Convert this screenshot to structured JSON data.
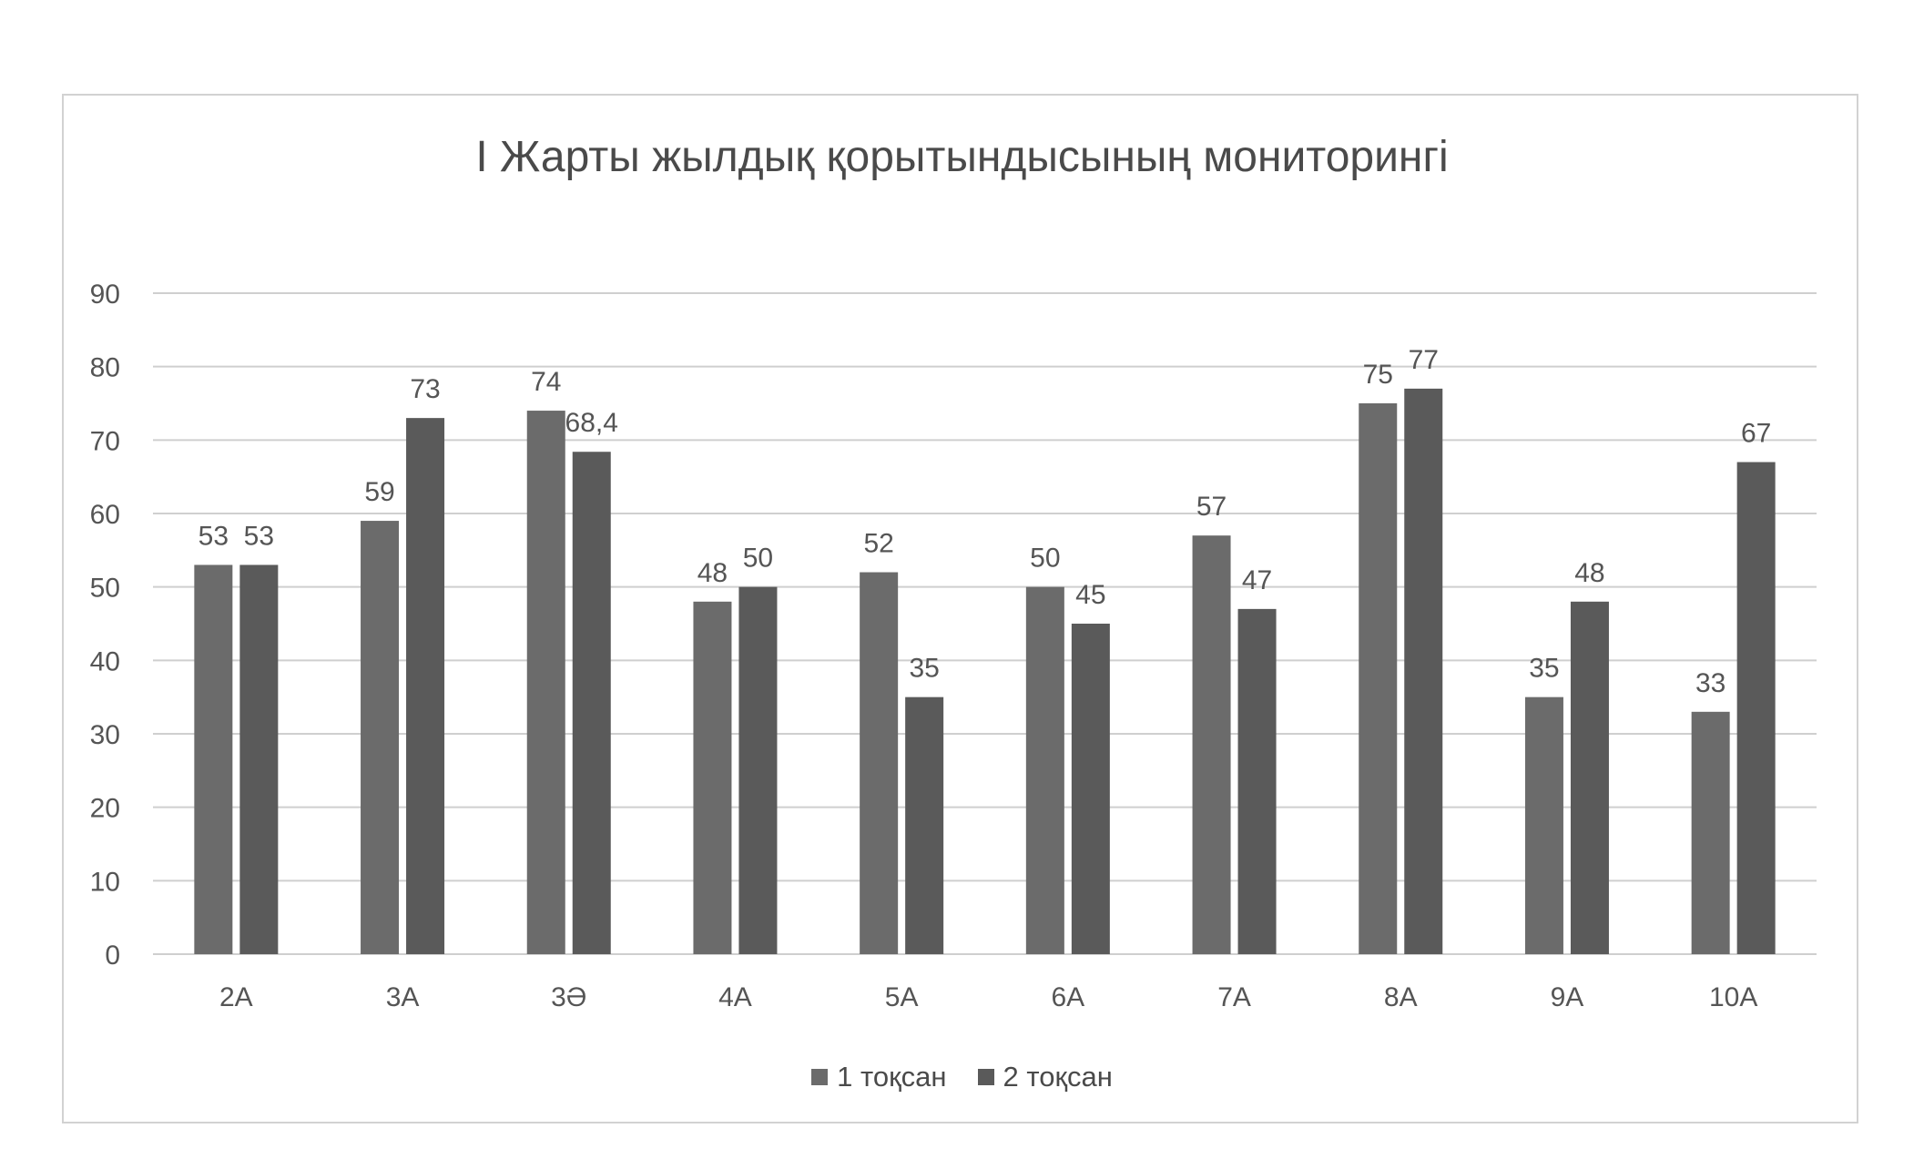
{
  "chart_data": {
    "type": "bar",
    "title": "I  Жарты жылдық қорытындысының мониторингі",
    "xlabel": "",
    "ylabel": "",
    "ylim": [
      0,
      90
    ],
    "yticks": [
      0,
      10,
      20,
      30,
      40,
      50,
      60,
      70,
      80,
      90
    ],
    "grid": true,
    "legend_position": "bottom",
    "categories": [
      "2А",
      "3А",
      "3Ә",
      "4А",
      "5А",
      "6А",
      "7А",
      "8А",
      "9А",
      "10А"
    ],
    "series": [
      {
        "name": "1 тоқсан",
        "color": "#6b6b6b",
        "values": [
          53,
          59,
          74,
          48,
          52,
          50,
          57,
          75,
          35,
          33
        ],
        "labels": [
          "53",
          "59",
          "74",
          "48",
          "52",
          "50",
          "57",
          "75",
          "35",
          "33"
        ]
      },
      {
        "name": "2 тоқсан",
        "color": "#5a5a5a",
        "values": [
          53,
          73,
          68.4,
          50,
          35,
          45,
          47,
          77,
          48,
          67
        ],
        "labels": [
          "53",
          "73",
          "68,4",
          "50",
          "35",
          "45",
          "47",
          "77",
          "48",
          "67"
        ]
      }
    ]
  }
}
